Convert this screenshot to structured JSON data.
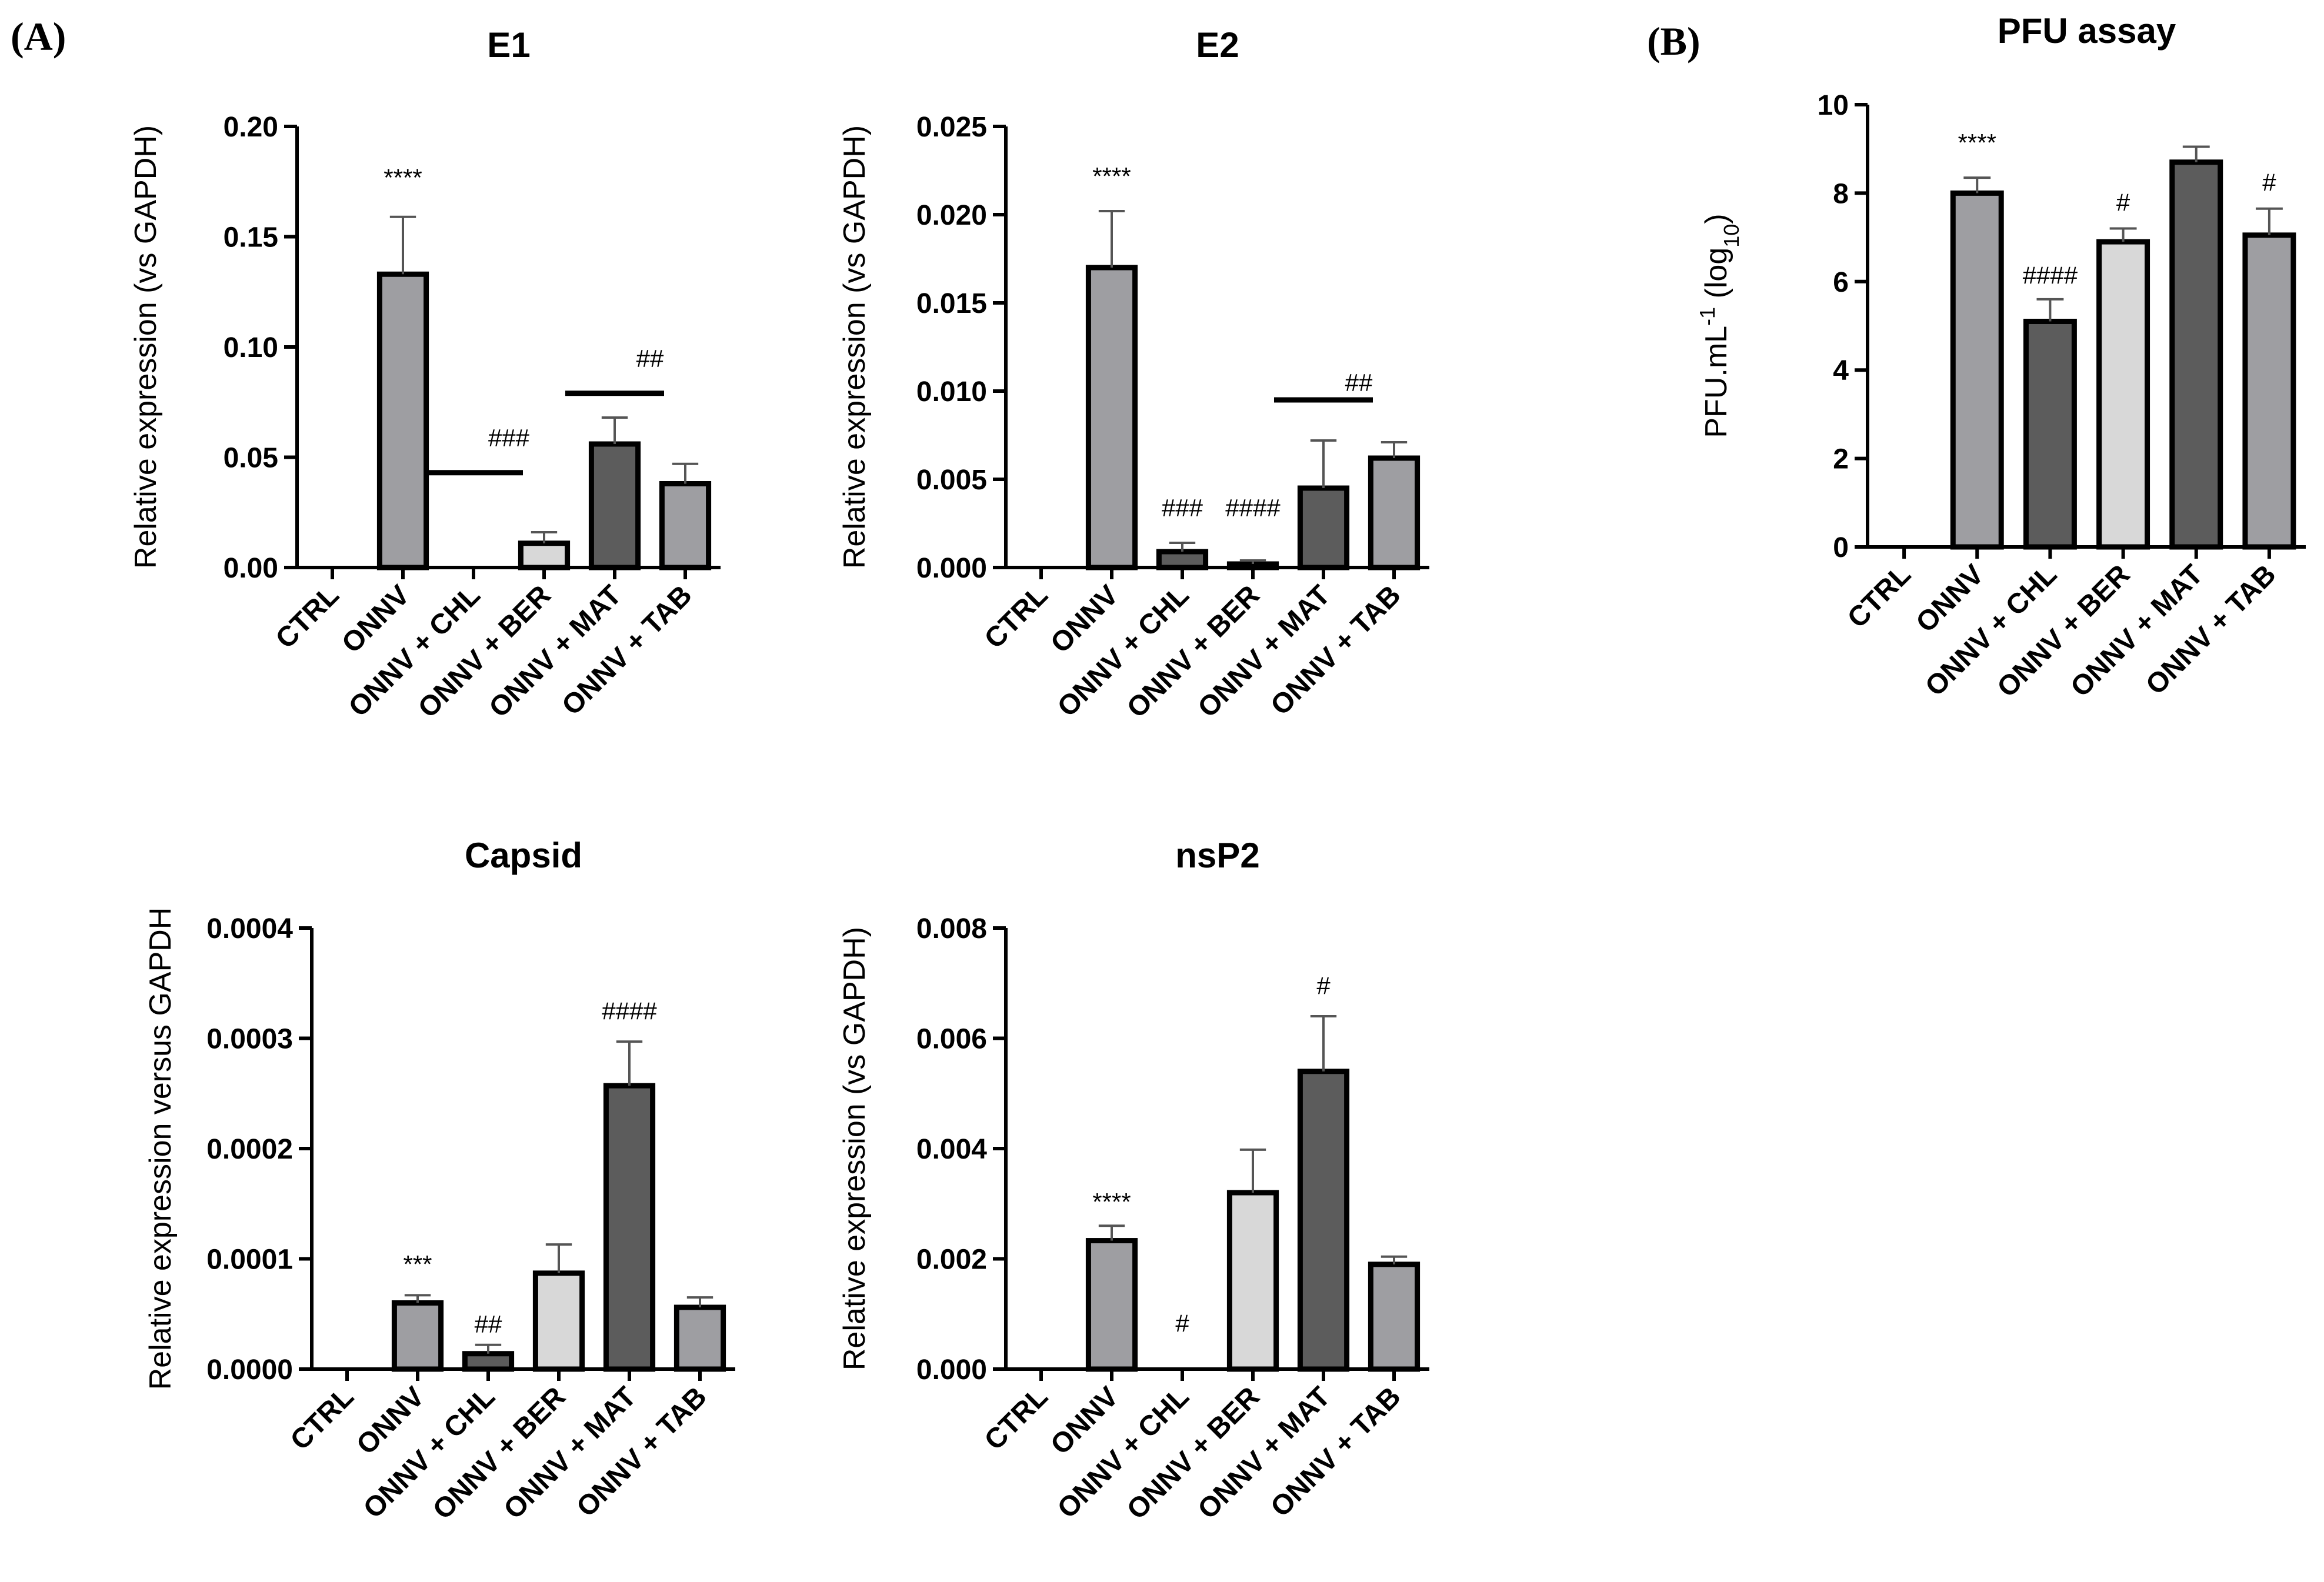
{
  "panel_labels": {
    "a": "(A)",
    "b": "(B)"
  },
  "chart_data": [
    {
      "id": "e1",
      "type": "bar",
      "title": "E1",
      "ylabel": "Relative expression (vs  GAPDH)",
      "xlabel": "",
      "ylim": [
        0,
        0.2
      ],
      "yticks": [
        0,
        0.05,
        0.1,
        0.15,
        0.2
      ],
      "ytick_labels": [
        "0.00",
        "0.05",
        "0.10",
        "0.15",
        "0.20"
      ],
      "categories": [
        "CTRL",
        "ONNV",
        "ONNV + CHL",
        "ONNV + BER",
        "ONNV + MAT",
        "ONNV + TAB"
      ],
      "values": [
        0,
        0.133,
        0,
        0.011,
        0.056,
        0.038
      ],
      "errors": [
        0,
        0.026,
        0,
        0.005,
        0.012,
        0.009
      ],
      "bar_colors": [
        "#9e9ea2",
        "#9e9ea2",
        "#5c5c5c",
        "#d8d8d8",
        "#5c5c5c",
        "#9e9ea2"
      ],
      "annotations": [
        {
          "text": "****",
          "x": 1,
          "y": 0.173
        },
        {
          "text": "###",
          "x": 2.5,
          "y": 0.055
        },
        {
          "text": "##",
          "x": 4.5,
          "y": 0.091
        }
      ],
      "brackets": [
        {
          "from": 1.8,
          "to": 3.2,
          "y": 0.043
        },
        {
          "from": 3.8,
          "to": 5.2,
          "y": 0.079
        }
      ]
    },
    {
      "id": "e2",
      "type": "bar",
      "title": "E2",
      "ylabel": "Relative expression (vs  GAPDH)",
      "xlabel": "",
      "ylim": [
        0,
        0.025
      ],
      "yticks": [
        0,
        0.005,
        0.01,
        0.015,
        0.02,
        0.025
      ],
      "ytick_labels": [
        "0.000",
        "0.005",
        "0.010",
        "0.015",
        "0.020",
        "0.025"
      ],
      "categories": [
        "CTRL",
        "ONNV",
        "ONNV + CHL",
        "ONNV + BER",
        "ONNV + MAT",
        "ONNV + TAB"
      ],
      "values": [
        0,
        0.017,
        0.0009,
        0.0002,
        0.0045,
        0.0062
      ],
      "errors": [
        0,
        0.0032,
        0.0005,
        0.0002,
        0.0027,
        0.0009
      ],
      "bar_colors": [
        "#9e9ea2",
        "#9e9ea2",
        "#5c5c5c",
        "#d8d8d8",
        "#5c5c5c",
        "#9e9ea2"
      ],
      "annotations": [
        {
          "text": "****",
          "x": 1,
          "y": 0.0217
        },
        {
          "text": "###",
          "x": 2,
          "y": 0.0029
        },
        {
          "text": "####",
          "x": 3,
          "y": 0.0029
        },
        {
          "text": "##",
          "x": 4.5,
          "y": 0.01
        }
      ],
      "brackets": [
        {
          "from": 3.8,
          "to": 5.2,
          "y": 0.0095
        }
      ]
    },
    {
      "id": "pfu",
      "type": "bar",
      "title": "PFU assay",
      "ylabel": "PFU.mL",
      "ylabel_sup": "-1",
      "ylabel_mid": " (log",
      "ylabel_sub": "10",
      "ylabel_end": ")",
      "xlabel": "",
      "ylim": [
        0,
        10
      ],
      "yticks": [
        0,
        2,
        4,
        6,
        8,
        10
      ],
      "ytick_labels": [
        "0",
        "2",
        "4",
        "6",
        "8",
        "10"
      ],
      "categories": [
        "CTRL",
        "ONNV",
        "ONNV + CHL",
        "ONNV + BER",
        "ONNV + MAT",
        "ONNV + TAB"
      ],
      "values": [
        0,
        8.0,
        5.1,
        6.9,
        8.7,
        7.05
      ],
      "errors": [
        0,
        0.35,
        0.5,
        0.3,
        0.35,
        0.6
      ],
      "bar_colors": [
        "#9e9ea2",
        "#9e9ea2",
        "#5c5c5c",
        "#d8d8d8",
        "#5c5c5c",
        "#9e9ea2"
      ],
      "annotations": [
        {
          "text": "****",
          "x": 1,
          "y": 8.95
        },
        {
          "text": "####",
          "x": 2,
          "y": 5.95
        },
        {
          "text": "#",
          "x": 3,
          "y": 7.6
        },
        {
          "text": "#",
          "x": 5,
          "y": 8.05
        }
      ],
      "brackets": []
    },
    {
      "id": "capsid",
      "type": "bar",
      "title": "Capsid",
      "ylabel": "Relative expression versus GAPDH",
      "xlabel": "",
      "ylim": [
        0,
        0.0004
      ],
      "yticks": [
        0,
        0.0001,
        0.0002,
        0.0003,
        0.0004
      ],
      "ytick_labels": [
        "0.0000",
        "0.0001",
        "0.0002",
        "0.0003",
        "0.0004"
      ],
      "categories": [
        "CTRL",
        "ONNV",
        "ONNV + CHL",
        "ONNV + BER",
        "ONNV + MAT",
        "ONNV + TAB"
      ],
      "values": [
        0,
        6e-05,
        1.4e-05,
        8.7e-05,
        0.000257,
        5.6e-05
      ],
      "errors": [
        0,
        7e-06,
        8e-06,
        2.6e-05,
        4e-05,
        9e-06
      ],
      "bar_colors": [
        "#9e9ea2",
        "#9e9ea2",
        "#5c5c5c",
        "#d8d8d8",
        "#5c5c5c",
        "#9e9ea2"
      ],
      "annotations": [
        {
          "text": "***",
          "x": 1,
          "y": 8.75e-05
        },
        {
          "text": "##",
          "x": 2,
          "y": 3.3e-05
        },
        {
          "text": "####",
          "x": 4,
          "y": 0.000317
        }
      ],
      "brackets": []
    },
    {
      "id": "nsp2",
      "type": "bar",
      "title": "nsP2",
      "ylabel": "Relative expression (vs  GAPDH)",
      "xlabel": "",
      "ylim": [
        0,
        0.008
      ],
      "yticks": [
        0,
        0.002,
        0.004,
        0.006,
        0.008
      ],
      "ytick_labels": [
        "0.000",
        "0.002",
        "0.004",
        "0.006",
        "0.008"
      ],
      "categories": [
        "CTRL",
        "ONNV",
        "ONNV + CHL",
        "ONNV + BER",
        "ONNV + MAT",
        "ONNV + TAB"
      ],
      "values": [
        0,
        0.00233,
        0,
        0.0032,
        0.0054,
        0.0019
      ],
      "errors": [
        0,
        0.00027,
        0,
        0.00078,
        0.001,
        0.00014
      ],
      "bar_colors": [
        "#9e9ea2",
        "#9e9ea2",
        "#5c5c5c",
        "#d8d8d8",
        "#5c5c5c",
        "#9e9ea2"
      ],
      "annotations": [
        {
          "text": "****",
          "x": 1,
          "y": 0.00288
        },
        {
          "text": "#",
          "x": 2,
          "y": 0.00068
        },
        {
          "text": "#",
          "x": 4,
          "y": 0.0068
        }
      ],
      "brackets": []
    }
  ]
}
